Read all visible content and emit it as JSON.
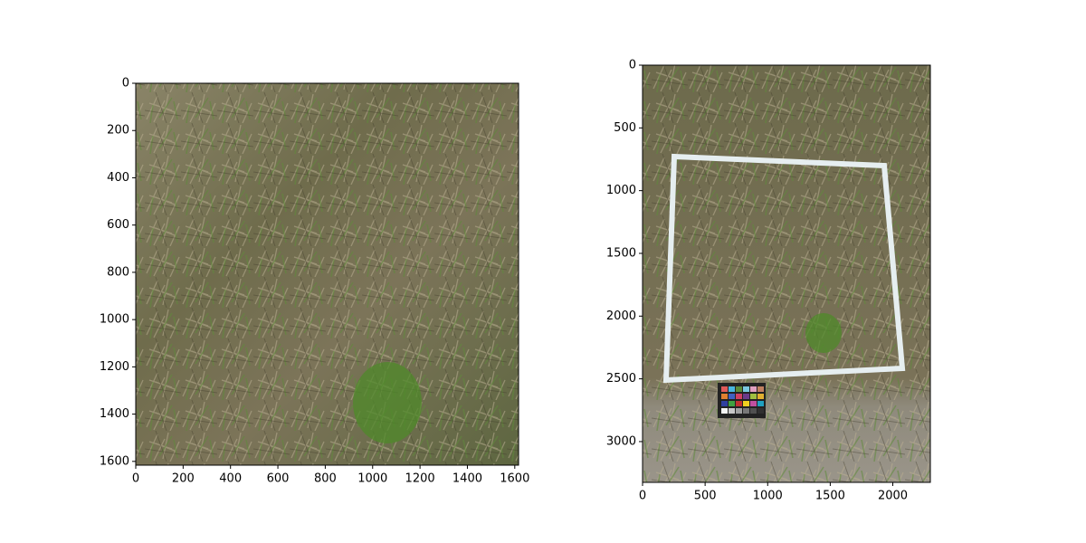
{
  "chart_data": [
    {
      "type": "image",
      "xlim": [
        0,
        1616
      ],
      "ylim": [
        1616,
        0
      ],
      "xticks": [
        0,
        200,
        400,
        600,
        800,
        1000,
        1200,
        1400,
        1600
      ],
      "yticks": [
        0,
        200,
        400,
        600,
        800,
        1000,
        1200,
        1400,
        1600
      ]
    },
    {
      "type": "image",
      "xlim": [
        0,
        2300
      ],
      "ylim": [
        3325,
        0
      ],
      "xticks": [
        0,
        500,
        1000,
        1500,
        2000
      ],
      "yticks": [
        0,
        500,
        1000,
        1500,
        2000,
        2500,
        3000
      ]
    }
  ]
}
